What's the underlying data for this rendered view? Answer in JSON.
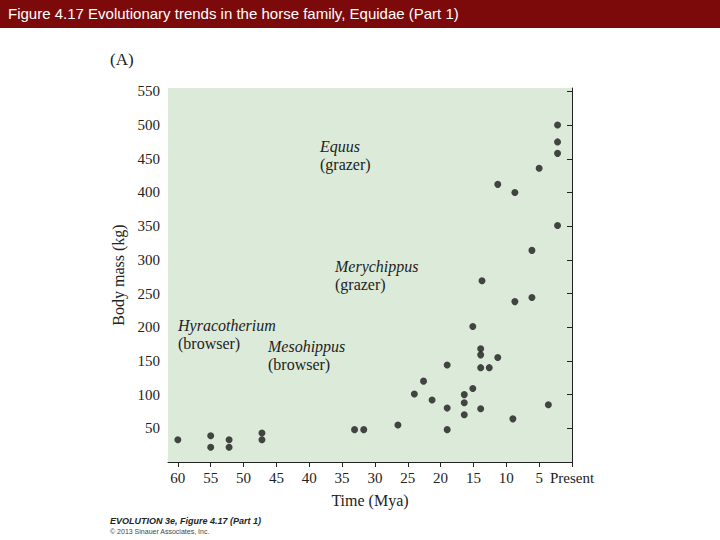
{
  "header": "Figure 4.17  Evolutionary trends in the horse family, Equidae (Part 1)",
  "panel_label": "(A)",
  "footer": {
    "title": "EVOLUTION 3e, Figure 4.17 (Part 1)",
    "copyright": "© 2013 Sinauer Associates, Inc."
  },
  "chart_data": {
    "type": "scatter",
    "x_label": "Time (Mya)",
    "y_label": "Body mass (kg)",
    "x": [
      60,
      55,
      55,
      52.2,
      52.2,
      47.2,
      47.2,
      33.1,
      31.7,
      26.5,
      24,
      22.6,
      21.3,
      19,
      19,
      19,
      16.4,
      16.4,
      16.4,
      15.1,
      15.1,
      13.9,
      13.9,
      13.9,
      13.9,
      13.7,
      12.6,
      11.3,
      11.3,
      9,
      8.7,
      8.7,
      6.1,
      6.1,
      5,
      3.6,
      2.2,
      2.2,
      2.2,
      2.2
    ],
    "values": [
      33,
      39,
      22,
      33,
      22,
      43,
      33,
      48,
      48,
      55,
      101,
      120,
      92,
      144,
      80,
      48,
      100,
      88,
      70,
      109,
      201,
      168,
      159,
      140,
      79,
      269,
      140,
      155,
      412,
      64,
      238,
      400,
      244,
      314,
      436,
      85,
      500,
      475,
      458,
      351
    ],
    "color": "#1a1a1a",
    "marker": "circle",
    "xlim": [
      61.5,
      0
    ],
    "xticks": [
      60,
      55,
      50,
      45,
      40,
      35,
      30,
      25,
      20,
      15,
      10,
      5,
      {
        "value": 0,
        "label": "Present"
      }
    ],
    "ylim": [
      0,
      555
    ],
    "yticks": [
      50,
      100,
      150,
      200,
      250,
      300,
      350,
      400,
      450,
      500,
      550
    ],
    "grid": false,
    "annotations": [
      {
        "name": "Equus",
        "diet": "(grazer)"
      },
      {
        "name": "Merychippus",
        "diet": "(grazer)"
      },
      {
        "name": "Hyracotherium",
        "diet": "(browser)"
      },
      {
        "name": "Mesohippus",
        "diet": "(browser)"
      }
    ]
  }
}
